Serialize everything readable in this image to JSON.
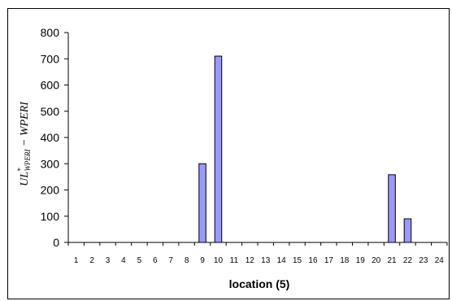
{
  "chart_data": {
    "type": "bar",
    "title": "",
    "xlabel": "location (5)",
    "ylabel": {
      "base": "UL",
      "superscript": "*",
      "subscript": "WPERI",
      "suffix": " − WPERI"
    },
    "categories": [
      "1",
      "2",
      "3",
      "4",
      "5",
      "6",
      "7",
      "8",
      "9",
      "10",
      "11",
      "12",
      "13",
      "14",
      "15",
      "16",
      "17",
      "18",
      "19",
      "20",
      "21",
      "22",
      "23",
      "24"
    ],
    "values": [
      0,
      0,
      0,
      0,
      0,
      0,
      0,
      0,
      300,
      710,
      0,
      0,
      0,
      0,
      0,
      0,
      0,
      0,
      0,
      0,
      258,
      90,
      0,
      0
    ],
    "ylim": [
      0,
      800
    ],
    "yticks": [
      "0",
      "100",
      "200",
      "300",
      "400",
      "500",
      "600",
      "700",
      "800"
    ],
    "grid": false,
    "legend": "none",
    "colors": {
      "bar_fill": "#9999ff",
      "bar_stroke": "#000000"
    }
  }
}
